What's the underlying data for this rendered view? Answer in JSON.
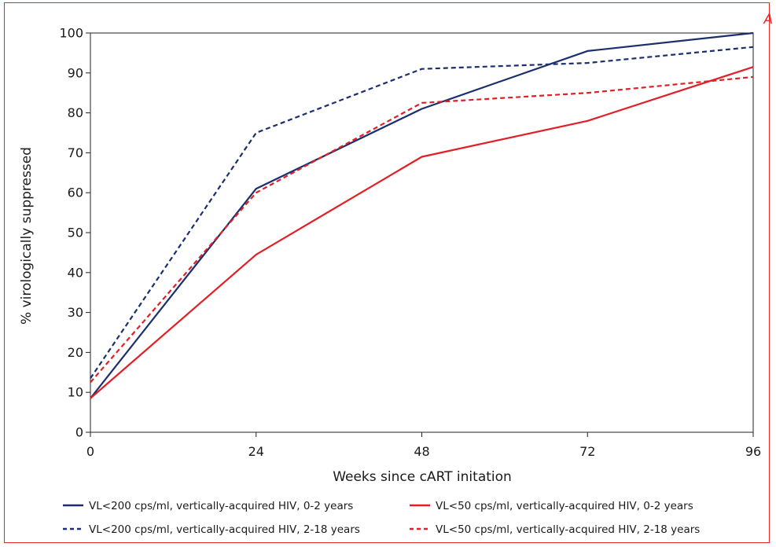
{
  "corner_label": "A",
  "colors": {
    "navy": "#1b2f6e",
    "red": "#e21f26"
  },
  "chart_data": {
    "type": "line",
    "title": "",
    "xlabel": "Weeks since cART initation",
    "ylabel": "% virologically suppressed",
    "xlim": [
      0,
      96
    ],
    "ylim": [
      0,
      100
    ],
    "xticks": [
      0,
      24,
      48,
      72,
      96
    ],
    "yticks": [
      0,
      10,
      20,
      30,
      40,
      50,
      60,
      70,
      80,
      90,
      100
    ],
    "grid": false,
    "legend_position": "bottom",
    "x": [
      0,
      24,
      48,
      72,
      96
    ],
    "series": [
      {
        "name": "VL<200 cps/ml, vertically-acquired HIV, 0-2 years",
        "color": "#1b2f6e",
        "dash": "solid",
        "values": [
          8.5,
          61,
          81,
          95.5,
          100
        ]
      },
      {
        "name": "VL<50 cps/ml, vertically-acquired HIV, 0-2 years",
        "color": "#e21f26",
        "dash": "solid",
        "values": [
          8.5,
          44.5,
          69,
          78,
          91.5
        ]
      },
      {
        "name": "VL<200 cps/ml, vertically-acquired HIV, 2-18 years",
        "color": "#1b2f6e",
        "dash": "dashed",
        "values": [
          13.5,
          75,
          91,
          92.5,
          96.5
        ]
      },
      {
        "name": "VL<50 cps/ml, vertically-acquired HIV, 2-18 years",
        "color": "#e21f26",
        "dash": "dashed",
        "values": [
          12.5,
          60,
          82.5,
          85,
          89
        ]
      }
    ]
  }
}
